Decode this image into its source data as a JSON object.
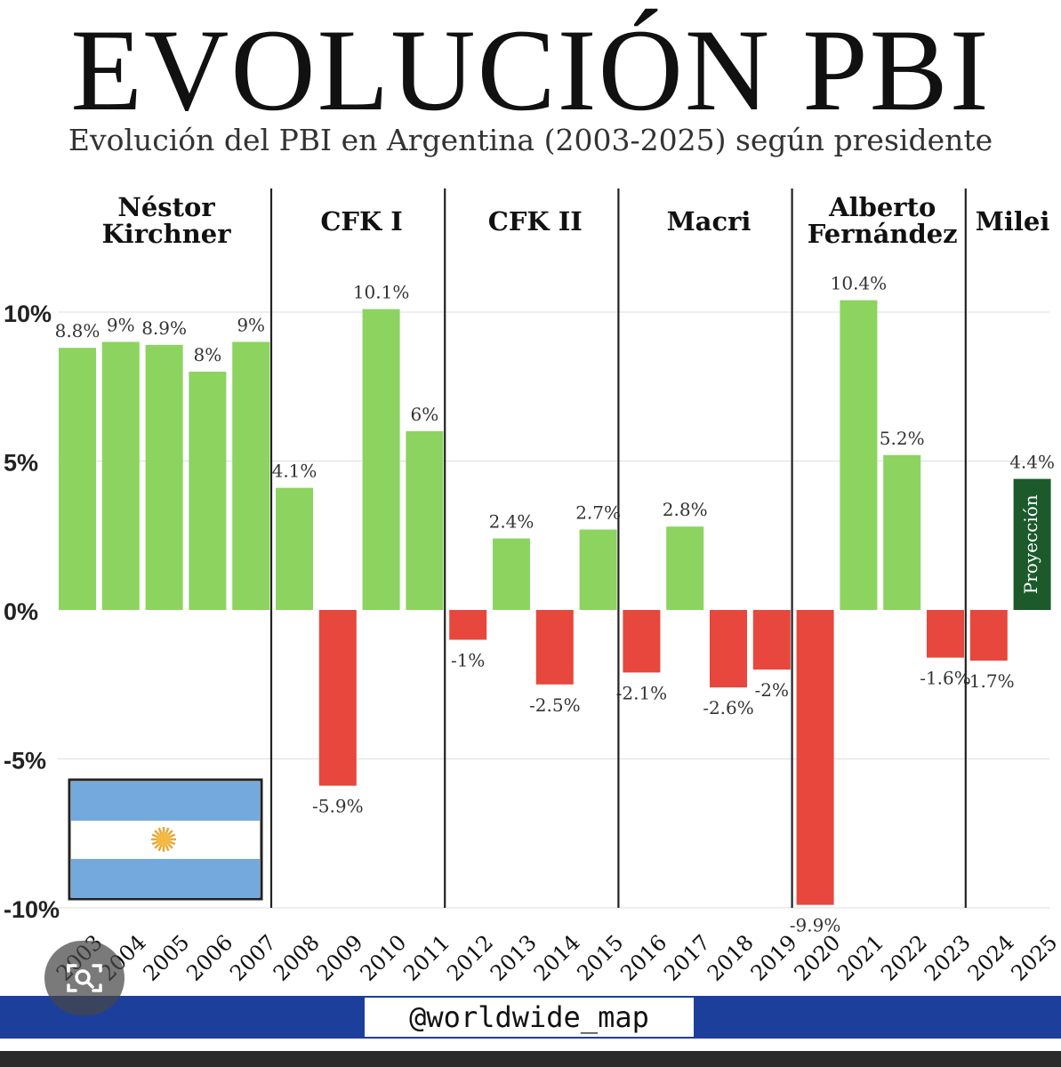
{
  "title": "EVOLUCIÓN PBI",
  "subtitle": "Evolución del PBI en Argentina (2003-2025) según presidente",
  "footer": {
    "handle": "@worldwide_map"
  },
  "colors": {
    "positive": "#8cd360",
    "negative": "#e7473c",
    "projection": "#1c5a2c",
    "footer": "#1d3f9c",
    "flag_blue": "#74a9dd"
  },
  "icons": {
    "flag": "argentina-flag-icon",
    "lens": "lens-search-icon"
  },
  "chart_data": {
    "type": "bar",
    "title": "EVOLUCIÓN PBI",
    "subtitle": "Evolución del PBI en Argentina (2003-2025) según presidente",
    "categories": [
      "2003",
      "2004",
      "2005",
      "2006",
      "2007",
      "2008",
      "2009",
      "2010",
      "2011",
      "2012",
      "2013",
      "2014",
      "2015",
      "2016",
      "2017",
      "2018",
      "2019",
      "2020",
      "2021",
      "2022",
      "2023",
      "2024",
      "2025"
    ],
    "values": [
      8.8,
      9,
      8.9,
      8,
      9,
      4.1,
      -5.9,
      10.1,
      6,
      -1,
      2.4,
      -2.5,
      2.7,
      -2.1,
      2.8,
      -2.6,
      -2,
      -9.9,
      10.4,
      5.2,
      -1.6,
      -1.7,
      4.4
    ],
    "labels": [
      "8.8%",
      "9%",
      "8.9%",
      "8%",
      "9%",
      "4.1%",
      "-5.9%",
      "10.1%",
      "6%",
      "-1%",
      "2.4%",
      "-2.5%",
      "2.7%",
      "-2.1%",
      "2.8%",
      "-2.6%",
      "-2%",
      "-9.9%",
      "10.4%",
      "5.2%",
      "-1.6%",
      "-1.7%",
      "4.4%"
    ],
    "ylim": [
      -10,
      10
    ],
    "yticks": [
      10,
      5,
      0,
      -5,
      -10
    ],
    "ytick_labels": [
      "10%",
      "5%",
      "0%",
      "-5%",
      "-10%"
    ],
    "grid": true,
    "xlabel": "",
    "ylabel": "",
    "periods": [
      {
        "name": "Néstor Kirchner",
        "start": 0,
        "end": 4
      },
      {
        "name": "CFK I",
        "start": 5,
        "end": 8
      },
      {
        "name": "CFK II",
        "start": 9,
        "end": 12
      },
      {
        "name": "Macri",
        "start": 13,
        "end": 16
      },
      {
        "name": "Alberto Fernández",
        "start": 17,
        "end": 20
      },
      {
        "name": "Milei",
        "start": 21,
        "end": 22
      }
    ],
    "projection": {
      "index": 22,
      "label": "Proyección"
    }
  }
}
